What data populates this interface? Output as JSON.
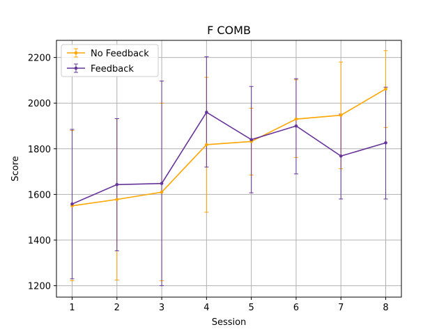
{
  "chart_data": {
    "type": "line",
    "title": "F COMB",
    "xlabel": "Session",
    "ylabel": "Score",
    "x": [
      1,
      2,
      3,
      4,
      5,
      6,
      7,
      8
    ],
    "xlim": [
      0.65,
      8.35
    ],
    "ylim": [
      1150,
      2275
    ],
    "yticks": [
      1200,
      1400,
      1600,
      1800,
      2000,
      2200
    ],
    "grid": true,
    "legend_position": "top-left",
    "series": [
      {
        "name": "No Feedback",
        "color": "#FFA500",
        "values": [
          1550,
          1578,
          1610,
          1818,
          1832,
          1930,
          1947,
          2062
        ],
        "err_low": [
          1222,
          1225,
          1222,
          1522,
          1685,
          1762,
          1712,
          1893
        ],
        "err_high": [
          1880,
          1932,
          2000,
          2113,
          1978,
          2102,
          2180,
          2230
        ]
      },
      {
        "name": "Feedback",
        "color": "#663399",
        "values": [
          1558,
          1643,
          1648,
          1960,
          1840,
          1900,
          1768,
          1826
        ],
        "err_low": [
          1230,
          1353,
          1200,
          1720,
          1607,
          1690,
          1580,
          1580
        ],
        "err_high": [
          1885,
          1932,
          2097,
          2203,
          2073,
          2107,
          1952,
          2070
        ]
      }
    ]
  }
}
